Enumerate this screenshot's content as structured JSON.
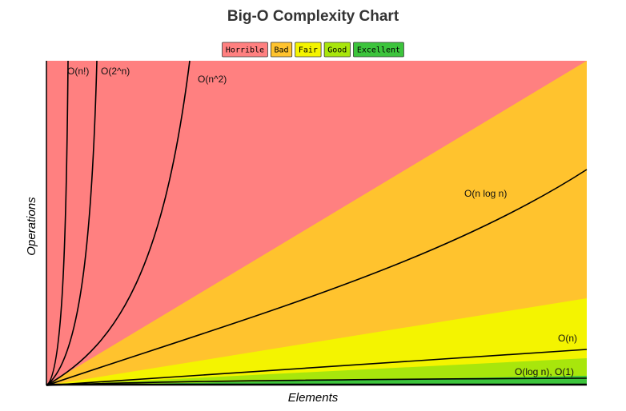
{
  "title": "Big-O Complexity Chart",
  "legend": [
    {
      "label": "Horrible",
      "color": "#ff8080"
    },
    {
      "label": "Bad",
      "color": "#ffc32e"
    },
    {
      "label": "Fair",
      "color": "#f4f400"
    },
    {
      "label": "Good",
      "color": "#a8e60c"
    },
    {
      "label": "Excellent",
      "color": "#3cc43c"
    }
  ],
  "curves": [
    "O(n!)",
    "O(2^n)",
    "O(n^2)",
    "O(n log n)",
    "O(n)",
    "O(log n), O(1)"
  ],
  "y_label": "Operations",
  "x_label": "Elements"
}
